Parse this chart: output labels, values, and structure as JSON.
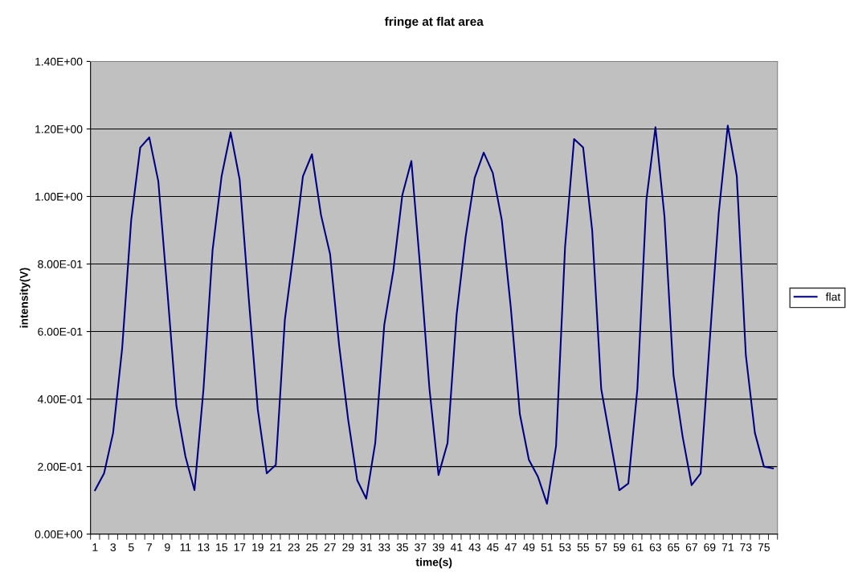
{
  "chart_data": {
    "type": "line",
    "title": "fringe at flat area",
    "xlabel": "time(s)",
    "ylabel": "intensity(V)",
    "categories": [
      "1",
      null,
      "3",
      null,
      "5",
      null,
      "7",
      null,
      "9",
      null,
      "11",
      null,
      "13",
      null,
      "15",
      null,
      "17",
      null,
      "19",
      null,
      "21",
      null,
      "23",
      null,
      "25",
      null,
      "27",
      null,
      "29",
      null,
      "31",
      null,
      "33",
      null,
      "35",
      null,
      "37",
      null,
      "39",
      null,
      "41",
      null,
      "43",
      null,
      "45",
      null,
      "47",
      null,
      "49",
      null,
      "51",
      null,
      "53",
      null,
      "55",
      null,
      "57",
      null,
      "59",
      null,
      "61",
      null,
      "63",
      null,
      "65",
      null,
      "67",
      null,
      "69",
      null,
      "71",
      null,
      "73",
      null,
      "75",
      null
    ],
    "series": [
      {
        "name": "flat",
        "color": "#000080",
        "values": [
          0.13,
          0.18,
          0.3,
          0.55,
          0.93,
          1.145,
          1.175,
          1.045,
          0.72,
          0.38,
          0.23,
          0.13,
          0.43,
          0.84,
          1.06,
          1.19,
          1.05,
          0.7,
          0.37,
          0.18,
          0.205,
          0.635,
          0.84,
          1.06,
          1.125,
          0.945,
          0.83,
          0.56,
          0.34,
          0.16,
          0.105,
          0.27,
          0.62,
          0.78,
          1.005,
          1.105,
          0.78,
          0.43,
          0.175,
          0.27,
          0.65,
          0.88,
          1.055,
          1.13,
          1.07,
          0.93,
          0.67,
          0.355,
          0.22,
          0.17,
          0.09,
          0.26,
          0.85,
          1.17,
          1.145,
          0.9,
          0.43,
          0.28,
          0.13,
          0.15,
          0.43,
          0.99,
          1.205,
          0.94,
          0.47,
          0.29,
          0.145,
          0.18,
          0.57,
          0.95,
          1.21,
          1.06,
          0.53,
          0.3,
          0.2,
          0.195
        ]
      }
    ],
    "ylim": [
      0,
      1.4
    ],
    "yticks": [
      {
        "value": 0,
        "label": "0.00E+00"
      },
      {
        "value": 0.2,
        "label": "2.00E-01"
      },
      {
        "value": 0.4,
        "label": "4.00E-01"
      },
      {
        "value": 0.6,
        "label": "6.00E-01"
      },
      {
        "value": 0.8,
        "label": "8.00E-01"
      },
      {
        "value": 1.0,
        "label": "1.00E+00"
      },
      {
        "value": 1.2,
        "label": "1.20E+00"
      },
      {
        "value": 1.4,
        "label": "1.40E+00"
      }
    ],
    "grid": "y",
    "legend": "right",
    "marker": "none",
    "line_style": "solid"
  }
}
